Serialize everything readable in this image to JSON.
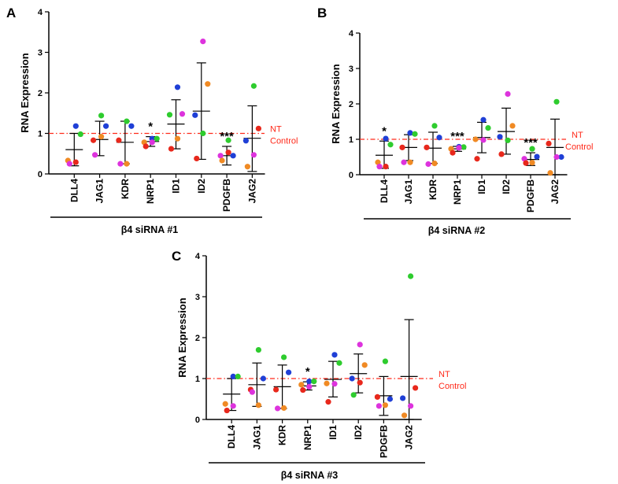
{
  "colors": {
    "blue": "#1f3fd6",
    "green": "#2ecc2e",
    "red": "#e8281c",
    "orange": "#f08a24",
    "magenta": "#dd33dd",
    "reference": "#ff2a1a"
  },
  "chart_data": [
    {
      "type": "scatter",
      "panel": "A",
      "ylabel": "RNA Expression",
      "group_label": "β4 siRNA #1",
      "ylim": [
        0,
        4
      ],
      "yticks": [
        0,
        1,
        2,
        3,
        4
      ],
      "reference": {
        "y": 1,
        "label_line1": "NT",
        "label_line2": "Control"
      },
      "categories": [
        "DLL4",
        "JAG1",
        "KDR",
        "NRP1",
        "ID1",
        "ID2",
        "PDGFB",
        "JAG2"
      ],
      "significance": [
        "",
        "",
        "",
        "*",
        "",
        "",
        "***",
        ""
      ],
      "mean": [
        0.6,
        0.85,
        0.78,
        0.8,
        1.23,
        1.55,
        0.45,
        0.88
      ],
      "sd_low": [
        0.2,
        0.45,
        0.25,
        0.68,
        0.62,
        0.36,
        0.22,
        0.06
      ],
      "sd_high": [
        1.0,
        1.3,
        1.3,
        0.92,
        1.83,
        2.74,
        0.68,
        1.68
      ],
      "points": [
        [
          {
            "c": "blue",
            "y": 1.18
          },
          {
            "c": "green",
            "y": 0.98
          },
          {
            "c": "orange",
            "y": 0.33
          },
          {
            "c": "red",
            "y": 0.29
          },
          {
            "c": "magenta",
            "y": 0.25
          }
        ],
        [
          {
            "c": "green",
            "y": 1.44
          },
          {
            "c": "blue",
            "y": 1.18
          },
          {
            "c": "red",
            "y": 0.83
          },
          {
            "c": "orange",
            "y": 0.92
          },
          {
            "c": "magenta",
            "y": 0.47
          }
        ],
        [
          {
            "c": "green",
            "y": 1.3
          },
          {
            "c": "blue",
            "y": 1.18
          },
          {
            "c": "red",
            "y": 0.83
          },
          {
            "c": "orange",
            "y": 0.25
          },
          {
            "c": "magenta",
            "y": 0.25
          }
        ],
        [
          {
            "c": "blue",
            "y": 0.87
          },
          {
            "c": "green",
            "y": 0.87
          },
          {
            "c": "orange",
            "y": 0.78
          },
          {
            "c": "magenta",
            "y": 0.78
          },
          {
            "c": "red",
            "y": 0.68
          }
        ],
        [
          {
            "c": "blue",
            "y": 2.14
          },
          {
            "c": "magenta",
            "y": 1.48
          },
          {
            "c": "green",
            "y": 1.46
          },
          {
            "c": "orange",
            "y": 0.87
          },
          {
            "c": "red",
            "y": 0.62
          }
        ],
        [
          {
            "c": "magenta",
            "y": 3.27
          },
          {
            "c": "orange",
            "y": 2.22
          },
          {
            "c": "blue",
            "y": 1.45
          },
          {
            "c": "green",
            "y": 1.0
          },
          {
            "c": "red",
            "y": 0.38
          }
        ],
        [
          {
            "c": "green",
            "y": 0.83
          },
          {
            "c": "blue",
            "y": 0.45
          },
          {
            "c": "magenta",
            "y": 0.45
          },
          {
            "c": "red",
            "y": 0.53
          },
          {
            "c": "orange",
            "y": 0.33
          }
        ],
        [
          {
            "c": "green",
            "y": 2.17
          },
          {
            "c": "red",
            "y": 1.12
          },
          {
            "c": "blue",
            "y": 0.82
          },
          {
            "c": "magenta",
            "y": 0.47
          },
          {
            "c": "orange",
            "y": 0.18
          }
        ]
      ]
    },
    {
      "type": "scatter",
      "panel": "B",
      "ylabel": "RNA Expression",
      "group_label": "β4 siRNA #2",
      "ylim": [
        0,
        4
      ],
      "yticks": [
        0,
        1,
        2,
        3,
        4
      ],
      "reference": {
        "y": 1,
        "label_line1": "NT",
        "label_line2": "Control"
      },
      "categories": [
        "DLL4",
        "JAG1",
        "KDR",
        "NRP1",
        "ID1",
        "ID2",
        "PDGFB",
        "JAG2"
      ],
      "significance": [
        "*",
        "",
        "",
        "***",
        "",
        "",
        "***",
        ""
      ],
      "mean": [
        0.55,
        0.77,
        0.75,
        0.73,
        1.05,
        1.22,
        0.43,
        0.77
      ],
      "sd_low": [
        0.18,
        0.4,
        0.32,
        0.66,
        0.62,
        0.58,
        0.26,
        0.0
      ],
      "sd_high": [
        0.95,
        1.13,
        1.2,
        0.8,
        1.48,
        1.88,
        0.62,
        1.57
      ],
      "points": [
        [
          {
            "c": "blue",
            "y": 1.02
          },
          {
            "c": "green",
            "y": 0.85
          },
          {
            "c": "orange",
            "y": 0.35
          },
          {
            "c": "red",
            "y": 0.23
          },
          {
            "c": "magenta",
            "y": 0.23
          }
        ],
        [
          {
            "c": "blue",
            "y": 1.18
          },
          {
            "c": "green",
            "y": 1.15
          },
          {
            "c": "red",
            "y": 0.77
          },
          {
            "c": "orange",
            "y": 0.35
          },
          {
            "c": "magenta",
            "y": 0.35
          }
        ],
        [
          {
            "c": "green",
            "y": 1.38
          },
          {
            "c": "blue",
            "y": 1.05
          },
          {
            "c": "red",
            "y": 0.77
          },
          {
            "c": "orange",
            "y": 0.32
          },
          {
            "c": "magenta",
            "y": 0.3
          }
        ],
        [
          {
            "c": "blue",
            "y": 0.79
          },
          {
            "c": "green",
            "y": 0.78
          },
          {
            "c": "orange",
            "y": 0.73
          },
          {
            "c": "magenta",
            "y": 0.76
          },
          {
            "c": "red",
            "y": 0.62
          }
        ],
        [
          {
            "c": "blue",
            "y": 1.55
          },
          {
            "c": "green",
            "y": 1.32
          },
          {
            "c": "orange",
            "y": 1.0
          },
          {
            "c": "magenta",
            "y": 0.98
          },
          {
            "c": "red",
            "y": 0.45
          }
        ],
        [
          {
            "c": "magenta",
            "y": 2.28
          },
          {
            "c": "orange",
            "y": 1.38
          },
          {
            "c": "blue",
            "y": 1.07
          },
          {
            "c": "green",
            "y": 0.97
          },
          {
            "c": "red",
            "y": 0.58
          }
        ],
        [
          {
            "c": "green",
            "y": 0.73
          },
          {
            "c": "blue",
            "y": 0.51
          },
          {
            "c": "magenta",
            "y": 0.45
          },
          {
            "c": "orange",
            "y": 0.34
          },
          {
            "c": "red",
            "y": 0.33
          }
        ],
        [
          {
            "c": "green",
            "y": 2.06
          },
          {
            "c": "blue",
            "y": 0.5
          },
          {
            "c": "red",
            "y": 0.88
          },
          {
            "c": "magenta",
            "y": 0.5
          },
          {
            "c": "orange",
            "y": 0.05
          }
        ]
      ]
    },
    {
      "type": "scatter",
      "panel": "C",
      "ylabel": "RNA Expression",
      "group_label": "β4 siRNA #3",
      "ylim": [
        0,
        4
      ],
      "yticks": [
        0,
        1,
        2,
        3,
        4
      ],
      "reference": {
        "y": 1,
        "label_line1": "NT",
        "label_line2": "Control"
      },
      "categories": [
        "DLL4",
        "JAG1",
        "KDR",
        "NRP1",
        "ID1",
        "ID2",
        "PDGFB",
        "JAG2"
      ],
      "significance": [
        "",
        "",
        "",
        "*",
        "",
        "",
        "",
        ""
      ],
      "mean": [
        0.62,
        0.85,
        0.8,
        0.82,
        0.98,
        1.12,
        0.58,
        1.05
      ],
      "sd_low": [
        0.22,
        0.32,
        0.27,
        0.72,
        0.55,
        0.65,
        0.1,
        0.0
      ],
      "sd_high": [
        1.0,
        1.38,
        1.33,
        0.92,
        1.42,
        1.6,
        1.05,
        2.44
      ],
      "points": [
        [
          {
            "c": "blue",
            "y": 1.05
          },
          {
            "c": "green",
            "y": 1.05
          },
          {
            "c": "orange",
            "y": 0.38
          },
          {
            "c": "magenta",
            "y": 0.33
          },
          {
            "c": "red",
            "y": 0.22
          }
        ],
        [
          {
            "c": "green",
            "y": 1.7
          },
          {
            "c": "blue",
            "y": 1.0
          },
          {
            "c": "red",
            "y": 0.73
          },
          {
            "c": "orange",
            "y": 0.35
          },
          {
            "c": "magenta",
            "y": 0.67
          }
        ],
        [
          {
            "c": "green",
            "y": 1.52
          },
          {
            "c": "blue",
            "y": 1.15
          },
          {
            "c": "red",
            "y": 0.73
          },
          {
            "c": "orange",
            "y": 0.28
          },
          {
            "c": "magenta",
            "y": 0.27
          }
        ],
        [
          {
            "c": "blue",
            "y": 0.93
          },
          {
            "c": "green",
            "y": 0.93
          },
          {
            "c": "orange",
            "y": 0.85
          },
          {
            "c": "magenta",
            "y": 0.8
          },
          {
            "c": "red",
            "y": 0.72
          }
        ],
        [
          {
            "c": "blue",
            "y": 1.58
          },
          {
            "c": "green",
            "y": 1.38
          },
          {
            "c": "orange",
            "y": 0.88
          },
          {
            "c": "magenta",
            "y": 0.87
          },
          {
            "c": "red",
            "y": 0.43
          }
        ],
        [
          {
            "c": "magenta",
            "y": 1.83
          },
          {
            "c": "orange",
            "y": 1.33
          },
          {
            "c": "blue",
            "y": 1.0
          },
          {
            "c": "red",
            "y": 0.9
          },
          {
            "c": "green",
            "y": 0.6
          }
        ],
        [
          {
            "c": "green",
            "y": 1.42
          },
          {
            "c": "blue",
            "y": 0.5
          },
          {
            "c": "red",
            "y": 0.55
          },
          {
            "c": "orange",
            "y": 0.35
          },
          {
            "c": "magenta",
            "y": 0.33
          }
        ],
        [
          {
            "c": "green",
            "y": 3.5
          },
          {
            "c": "red",
            "y": 0.77
          },
          {
            "c": "blue",
            "y": 0.52
          },
          {
            "c": "magenta",
            "y": 0.33
          },
          {
            "c": "orange",
            "y": 0.1
          }
        ]
      ]
    }
  ]
}
